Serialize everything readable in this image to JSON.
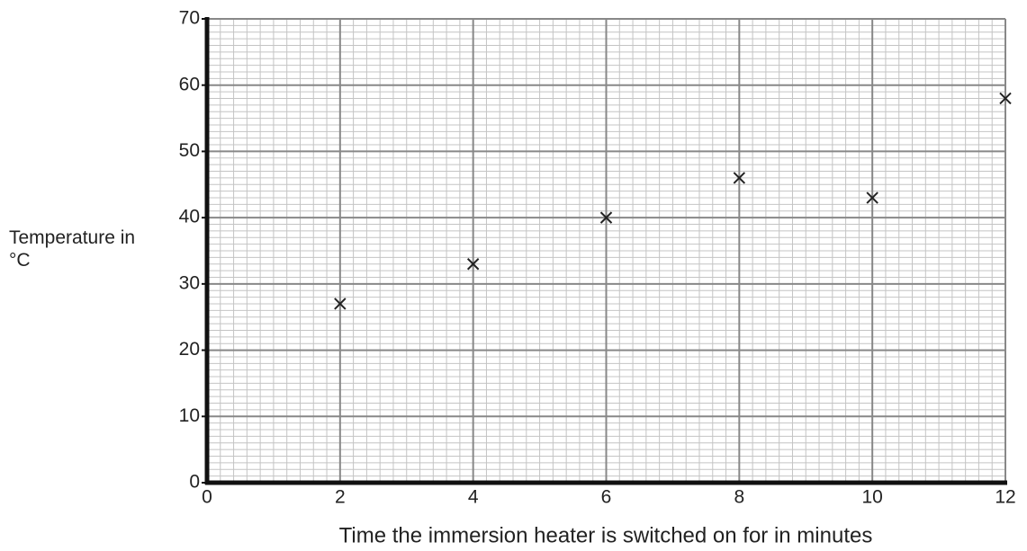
{
  "chart_data": {
    "type": "scatter",
    "xlabel": "Time the immersion heater is switched on for in minutes",
    "ylabel": "Temperature in °C",
    "x": [
      2,
      4,
      6,
      8,
      10,
      12
    ],
    "values": [
      27,
      33,
      40,
      46,
      43,
      58
    ],
    "color": "#222222",
    "xlim": [
      0,
      12
    ],
    "xticks": [
      0,
      2,
      4,
      6,
      8,
      10,
      12
    ],
    "ylim": [
      0,
      70
    ],
    "yticks": [
      0,
      10,
      20,
      30,
      40,
      50,
      60,
      70
    ],
    "grid": true,
    "minor_grid": {
      "x": 0.2,
      "y": 1
    }
  }
}
